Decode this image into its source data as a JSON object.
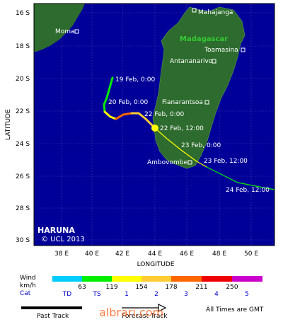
{
  "map": {
    "storm_name": "HARUNA",
    "copyright": "© UCL 2013",
    "axis": {
      "xlabel": "LONGITUDE",
      "ylabel": "LATITUDE"
    },
    "x_ticks": [
      "38 E",
      "40 E",
      "42 E",
      "44 E",
      "46 E",
      "48 E",
      "50 E"
    ],
    "y_ticks": [
      "16 S",
      "18 S",
      "20 S",
      "22 S",
      "24 S",
      "26 S",
      "28 S",
      "30 S"
    ],
    "country_label": "Madagascar",
    "cities": [
      {
        "name": "Mahajanga"
      },
      {
        "name": "Moma"
      },
      {
        "name": "Toamasina"
      },
      {
        "name": "Antananarivo"
      },
      {
        "name": "Fianarantsoa"
      },
      {
        "name": "Ambovombe"
      }
    ],
    "track_labels": [
      "19 Feb, 0:00",
      "20 Feb, 0:00",
      "22 Feb, 0:00",
      "22 Feb, 12:00",
      "23 Feb, 0:00",
      "23 Feb, 12:00",
      "24 Feb, 12:00"
    ],
    "colors": {
      "ocean": "#000099",
      "land": "#2e6b2e",
      "past_track": "#000000"
    }
  },
  "legend": {
    "wind_label": "Wind",
    "unit_label": "km/h",
    "cat_label": "Cat",
    "colors": [
      "#00ccff",
      "#00ee00",
      "#ffff00",
      "#ffcc33",
      "#ff6600",
      "#ee0000",
      "#cc00cc"
    ],
    "thresholds": [
      "63",
      "119",
      "154",
      "178",
      "211",
      "250"
    ],
    "categories": [
      "TD",
      "TS",
      "1",
      "2",
      "3",
      "4",
      "5"
    ],
    "past_track": "Past Track",
    "forecast_track": "Forecast Track",
    "times_note": "All Times are GMT"
  },
  "watermark": "albrari.com"
}
